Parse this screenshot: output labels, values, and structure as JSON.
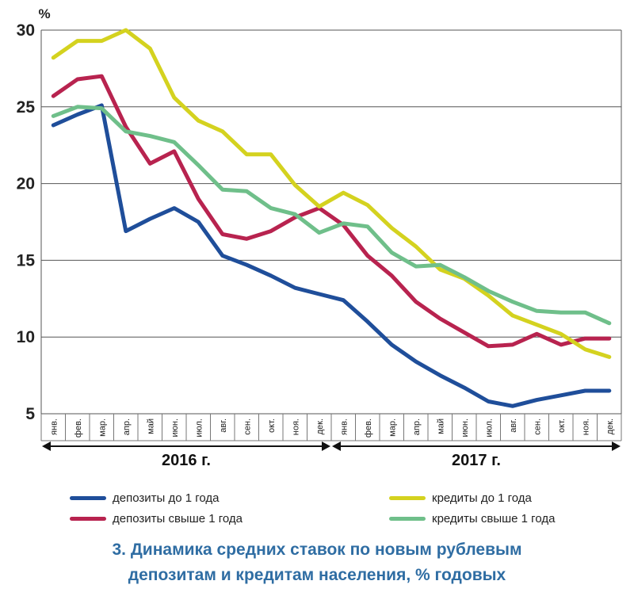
{
  "chart_data": {
    "type": "line",
    "unit_label": "%",
    "ylim": [
      5,
      30
    ],
    "yticks": [
      5,
      10,
      15,
      20,
      25,
      30
    ],
    "grid": true,
    "months": [
      "янв.",
      "фев.",
      "мар.",
      "апр.",
      "май",
      "июн.",
      "июл.",
      "авг.",
      "сен.",
      "окт.",
      "ноя.",
      "дек.",
      "янв.",
      "фев.",
      "мар.",
      "апр.",
      "май",
      "июн.",
      "июл.",
      "авг.",
      "сен.",
      "окт.",
      "ноя.",
      "дек."
    ],
    "years": [
      {
        "label": "2016 г.",
        "start": 0,
        "end": 11
      },
      {
        "label": "2017 г.",
        "start": 12,
        "end": 23
      }
    ],
    "series": [
      {
        "name": "депозиты до 1 года",
        "color": "#1f4e9a",
        "values": [
          23.8,
          24.5,
          25.1,
          16.9,
          17.7,
          18.4,
          17.5,
          15.3,
          14.7,
          14.0,
          13.2,
          12.8,
          12.4,
          11.0,
          9.5,
          8.4,
          7.5,
          6.7,
          5.8,
          5.5,
          5.9,
          6.2,
          6.5,
          6.5
        ]
      },
      {
        "name": "депозиты свыше 1 года",
        "color": "#b8234f",
        "values": [
          25.7,
          26.8,
          27.0,
          23.7,
          21.3,
          22.1,
          19.0,
          16.7,
          16.4,
          16.9,
          17.8,
          18.4,
          17.3,
          15.3,
          14.0,
          12.3,
          11.2,
          10.3,
          9.4,
          9.5,
          10.2,
          9.5,
          9.9,
          9.9
        ]
      },
      {
        "name": "кредиты до 1 года",
        "color": "#d4d21f",
        "values": [
          28.2,
          29.3,
          29.3,
          30.0,
          28.8,
          25.6,
          24.1,
          23.4,
          21.9,
          21.9,
          19.9,
          18.5,
          19.4,
          18.6,
          17.1,
          15.9,
          14.4,
          13.8,
          12.7,
          11.4,
          10.8,
          10.2,
          9.2,
          8.7
        ]
      },
      {
        "name": "кредиты свыше 1 года",
        "color": "#6fbf8a",
        "values": [
          24.4,
          25.0,
          24.9,
          23.4,
          23.1,
          22.7,
          21.2,
          19.6,
          19.5,
          18.4,
          18.0,
          16.8,
          17.4,
          17.2,
          15.5,
          14.6,
          14.7,
          13.9,
          13.0,
          12.3,
          11.7,
          11.6,
          11.6,
          10.9
        ]
      }
    ]
  },
  "caption": {
    "line1": "3. Динамика средних ставок по новым рублевым",
    "line2": "депозитам и кредитам населения, % годовых"
  }
}
